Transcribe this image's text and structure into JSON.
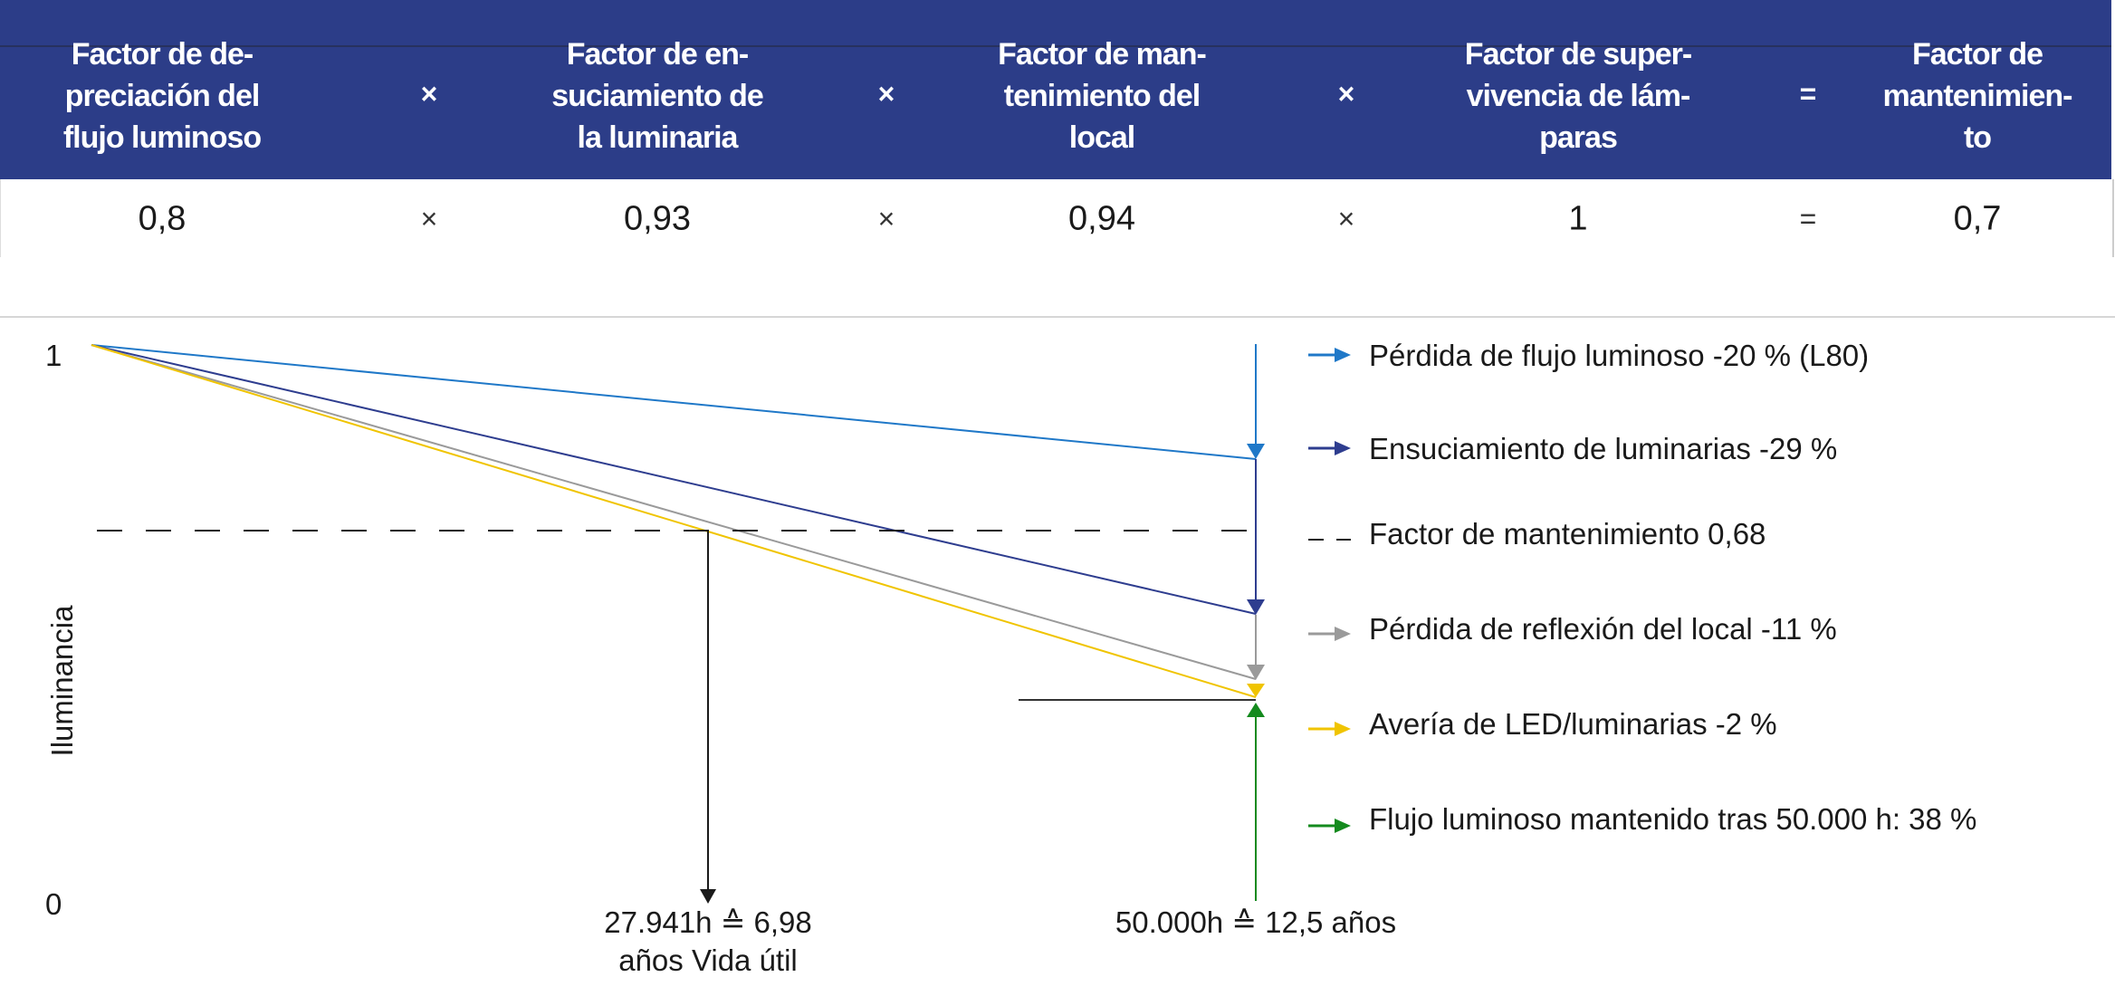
{
  "table": {
    "headers": [
      "Factor de de-\npreciación del\nflujo luminoso",
      "Factor de en-\nsuciamiento de\nla luminaria",
      "Factor de man-\ntenimiento del\nlocal",
      "Factor de super-\nvivencia de lám-\nparas",
      "Factor de\nmantenimien-\nto"
    ],
    "operators": [
      "×",
      "×",
      "×",
      "="
    ],
    "values": [
      "0,8",
      "0,93",
      "0,94",
      "1",
      "0,7"
    ]
  },
  "chart_data": {
    "type": "line",
    "ylabel": "Iluminancia",
    "y_ticks": [
      "1",
      "0"
    ],
    "ylim": [
      0,
      1
    ],
    "x_annotations": [
      "27.941h ≙ 6,98\naños Vida útil",
      "50.000h ≙ 12,5 años"
    ],
    "series": [
      {
        "name": "Pérdida de flujo luminoso -20 % (L80)",
        "color": "#1f78c8",
        "start": 1,
        "end": 0.8
      },
      {
        "name": "Ensuciamiento de luminarias -29 %",
        "color": "#2e3d8f",
        "start": 1,
        "end": 0.52
      },
      {
        "name": "Factor de mantenimiento 0,68",
        "color": "#1a1a1a",
        "style": "dashed",
        "value": 0.68
      },
      {
        "name": "Pérdida de reflexión del local -11 %",
        "color": "#9a9a9a",
        "start": 1,
        "end": 0.4
      },
      {
        "name": "Avería de LED/luminarias -2 %",
        "color": "#f0c400",
        "start": 1,
        "end": 0.38
      },
      {
        "name": "Flujo luminoso mantenido tras 50.000 h: 38 %",
        "color": "#148a1e",
        "value": 0.38
      }
    ]
  }
}
